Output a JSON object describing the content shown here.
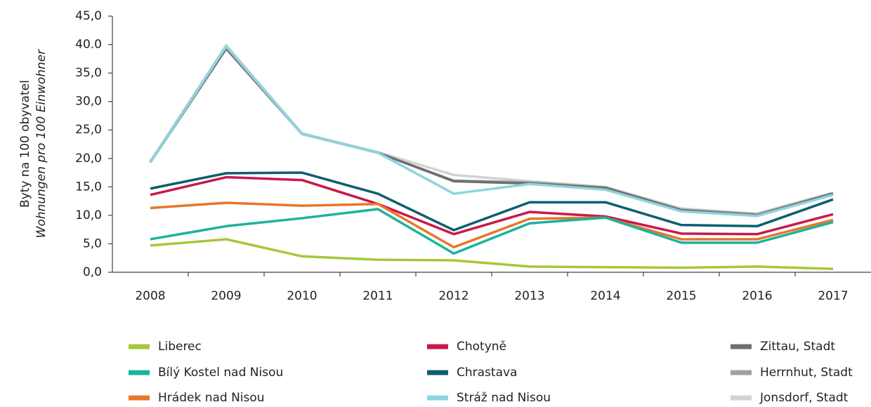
{
  "chart_data": {
    "type": "line",
    "y_label": "Byty na 100 obyvatel",
    "y_label_2": "Wohnungen pro 100 Einwohner",
    "categories": [
      "2008",
      "2009",
      "2010",
      "2011",
      "2012",
      "2013",
      "2014",
      "2015",
      "2016",
      "2017"
    ],
    "ylim": [
      0,
      45
    ],
    "yticks": [
      {
        "value": 0,
        "label": "0,0"
      },
      {
        "value": 5,
        "label": "5,0"
      },
      {
        "value": 10,
        "label": "10,0"
      },
      {
        "value": 15,
        "label": "15,0"
      },
      {
        "value": 20,
        "label": "20,0"
      },
      {
        "value": 25,
        "label": "25,0"
      },
      {
        "value": 30,
        "label": "30,0"
      },
      {
        "value": 35,
        "label": "35,0"
      },
      {
        "value": 40,
        "label": "40.0"
      },
      {
        "value": 45,
        "label": "45,0"
      }
    ],
    "series": [
      {
        "name": "Liberec",
        "color": "#a3c83a",
        "values": [
          4.7,
          5.8,
          2.8,
          2.2,
          2.1,
          1.0,
          0.9,
          0.8,
          1.0,
          0.6
        ]
      },
      {
        "name": "Bílý Kostel nad Nisou",
        "color": "#1bb39b",
        "values": [
          5.8,
          8.1,
          9.5,
          11.1,
          3.3,
          8.6,
          9.6,
          5.2,
          5.2,
          8.8
        ]
      },
      {
        "name": "Hrádek nad Nisou",
        "color": "#e8762c",
        "values": [
          11.3,
          12.2,
          11.7,
          12.0,
          4.4,
          9.4,
          9.6,
          5.8,
          5.8,
          9.2
        ]
      },
      {
        "name": "Chotyně",
        "color": "#c8194b",
        "values": [
          13.6,
          16.7,
          16.2,
          12.0,
          6.7,
          10.6,
          9.8,
          6.8,
          6.7,
          10.2
        ]
      },
      {
        "name": "Chrastava",
        "color": "#0e5e6f",
        "values": [
          14.7,
          17.4,
          17.5,
          13.8,
          7.4,
          12.3,
          12.3,
          8.3,
          8.1,
          12.8
        ]
      },
      {
        "name": "Stráž nad Nisou",
        "color": "#8ed4e0",
        "values": [
          19.3,
          39.7,
          24.3,
          21.0,
          13.8,
          15.5,
          14.5,
          10.7,
          9.9,
          13.6
        ]
      },
      {
        "name": "Zittau, Stadt",
        "color": "#6d6e70",
        "values": [
          19.3,
          39.3,
          24.3,
          21.0,
          16.0,
          15.6,
          14.8,
          10.9,
          10.0,
          13.8
        ]
      },
      {
        "name": "Herrnhut, Stadt",
        "color": "#a0a0a0",
        "values": [
          19.4,
          39.6,
          24.3,
          21.0,
          16.1,
          15.8,
          14.9,
          11.0,
          10.2,
          13.9
        ]
      },
      {
        "name": "Jonsdorf, Stadt",
        "color": "#d2d2d2",
        "values": [
          19.4,
          39.9,
          24.4,
          21.1,
          17.1,
          16.0,
          15.0,
          11.2,
          10.3,
          14.0
        ]
      }
    ]
  }
}
